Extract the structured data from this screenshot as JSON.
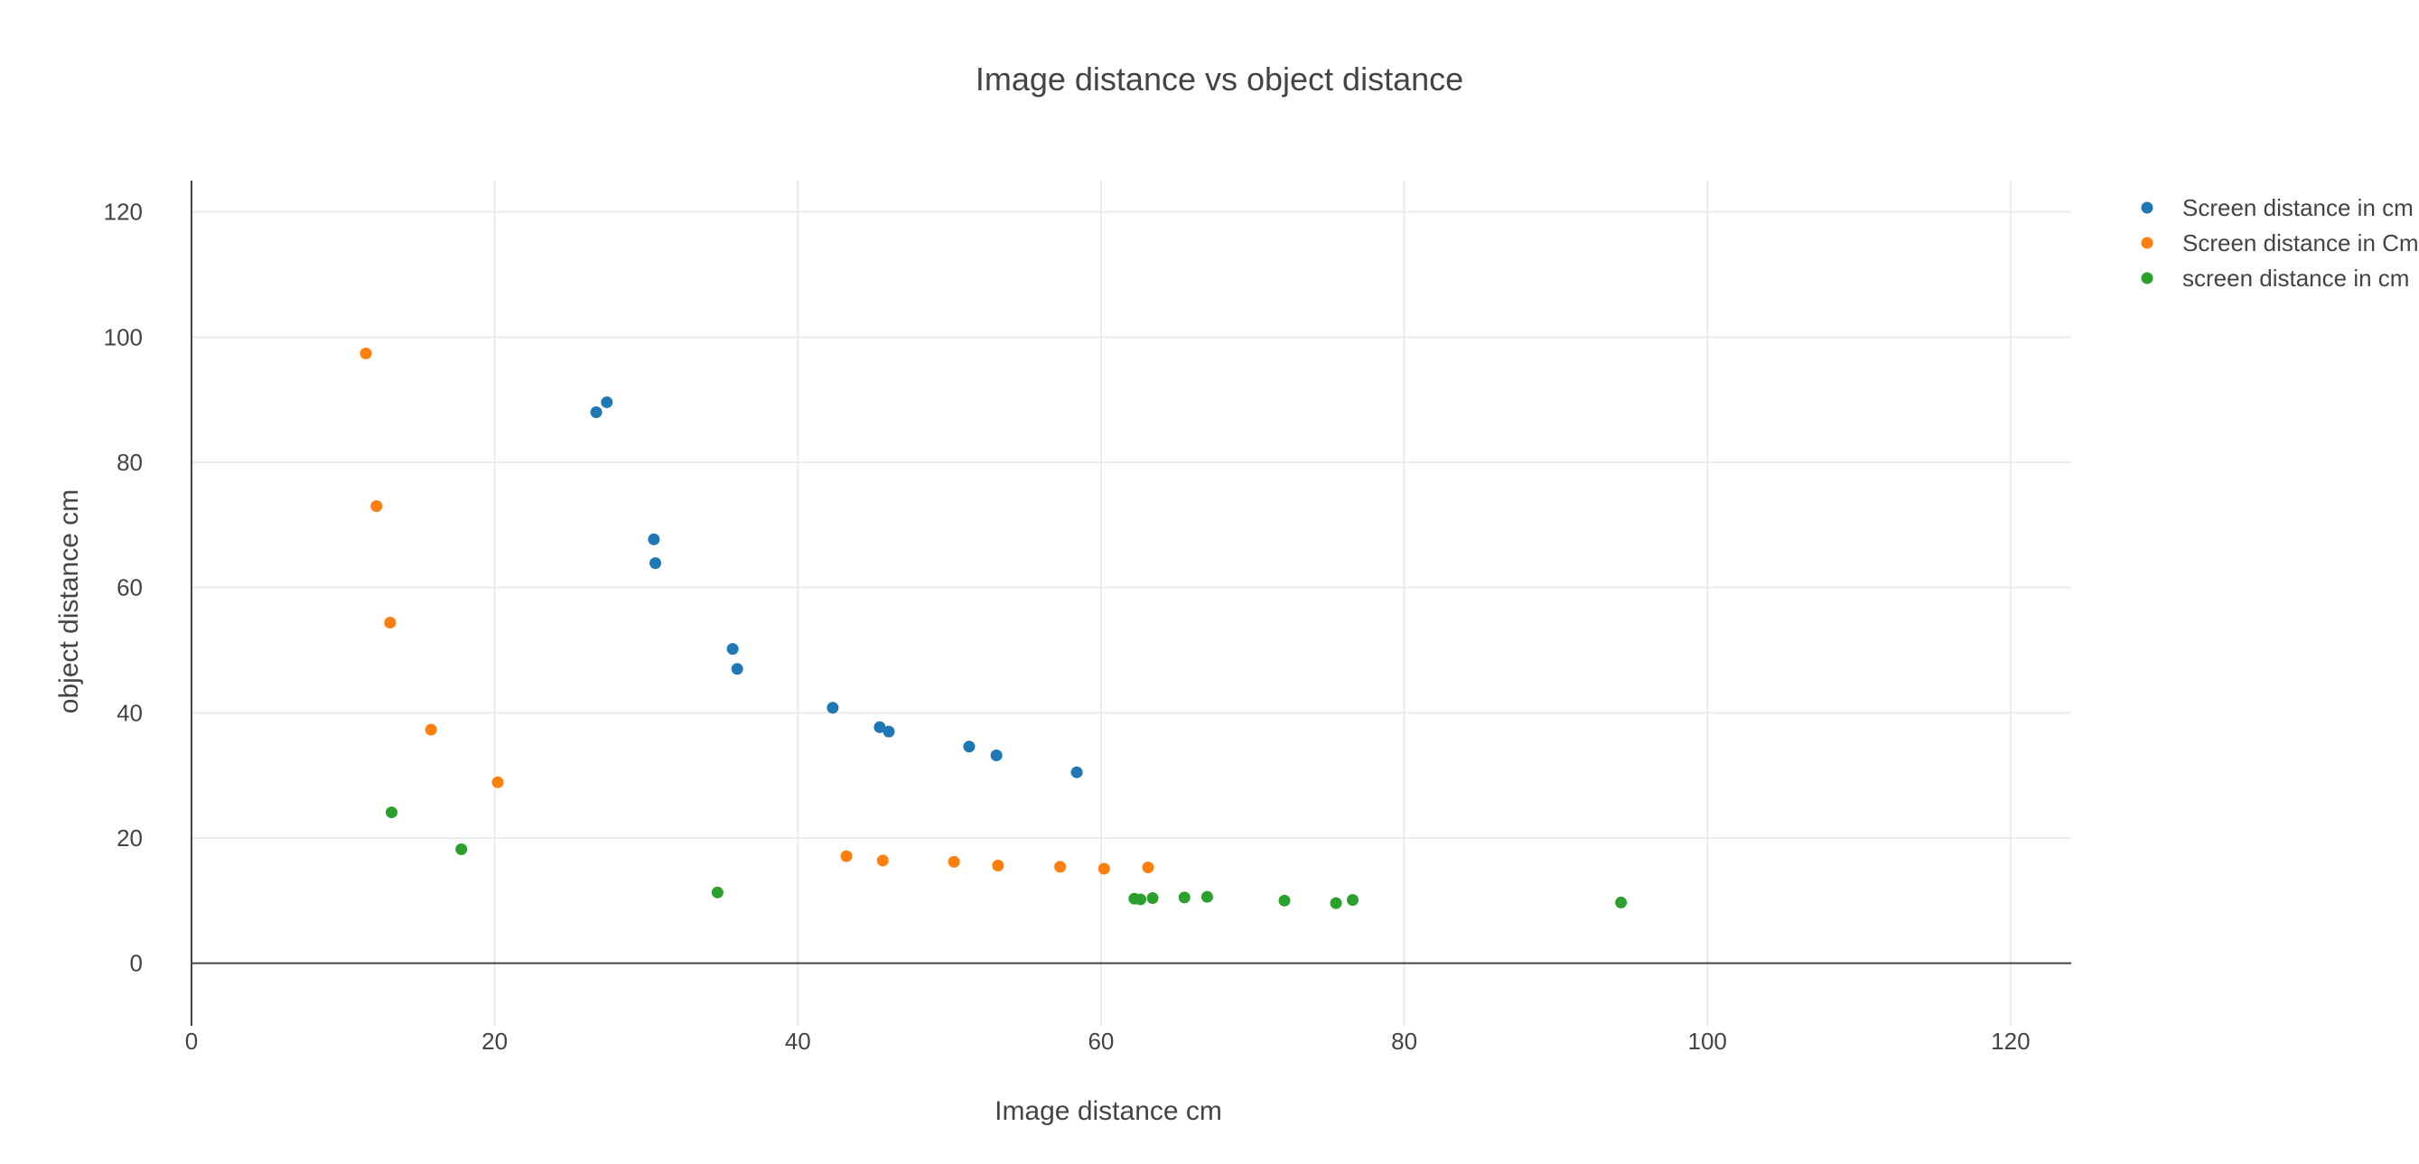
{
  "chart_data": {
    "type": "scatter",
    "title": "Image distance vs object distance",
    "xlabel": "Image distance cm",
    "ylabel": "object distance cm",
    "xlim": [
      0,
      124
    ],
    "ylim": [
      -10,
      125
    ],
    "xticks": [
      0,
      20,
      40,
      60,
      80,
      100,
      120
    ],
    "yticks": [
      0,
      20,
      40,
      60,
      80,
      100,
      120
    ],
    "grid": true,
    "legend_position": "top-right",
    "series": [
      {
        "name": "Screen distance in cm",
        "color": "#1f77b4",
        "points": [
          [
            26.7,
            88.0
          ],
          [
            27.4,
            89.6
          ],
          [
            30.5,
            67.7
          ],
          [
            30.6,
            63.9
          ],
          [
            35.7,
            50.2
          ],
          [
            36.0,
            47.0
          ],
          [
            42.3,
            40.8
          ],
          [
            45.4,
            37.7
          ],
          [
            46.0,
            37.0
          ],
          [
            51.3,
            34.6
          ],
          [
            53.1,
            33.2
          ],
          [
            58.4,
            30.5
          ]
        ]
      },
      {
        "name": "Screen distance in Cm",
        "color": "#ff7f0e",
        "points": [
          [
            11.5,
            97.4
          ],
          [
            12.2,
            73.0
          ],
          [
            13.1,
            54.4
          ],
          [
            15.8,
            37.3
          ],
          [
            20.2,
            28.9
          ],
          [
            43.2,
            17.1
          ],
          [
            45.6,
            16.4
          ],
          [
            50.3,
            16.2
          ],
          [
            53.2,
            15.6
          ],
          [
            57.3,
            15.4
          ],
          [
            60.2,
            15.1
          ],
          [
            63.1,
            15.3
          ]
        ]
      },
      {
        "name": "screen distance in cm",
        "color": "#2ca02c",
        "points": [
          [
            13.2,
            24.1
          ],
          [
            17.8,
            18.2
          ],
          [
            34.7,
            11.3
          ],
          [
            62.2,
            10.3
          ],
          [
            62.6,
            10.2
          ],
          [
            63.4,
            10.4
          ],
          [
            65.5,
            10.5
          ],
          [
            67.0,
            10.6
          ],
          [
            72.1,
            10.0
          ],
          [
            75.5,
            9.6
          ],
          [
            76.6,
            10.1
          ],
          [
            94.3,
            9.7
          ]
        ]
      }
    ]
  }
}
